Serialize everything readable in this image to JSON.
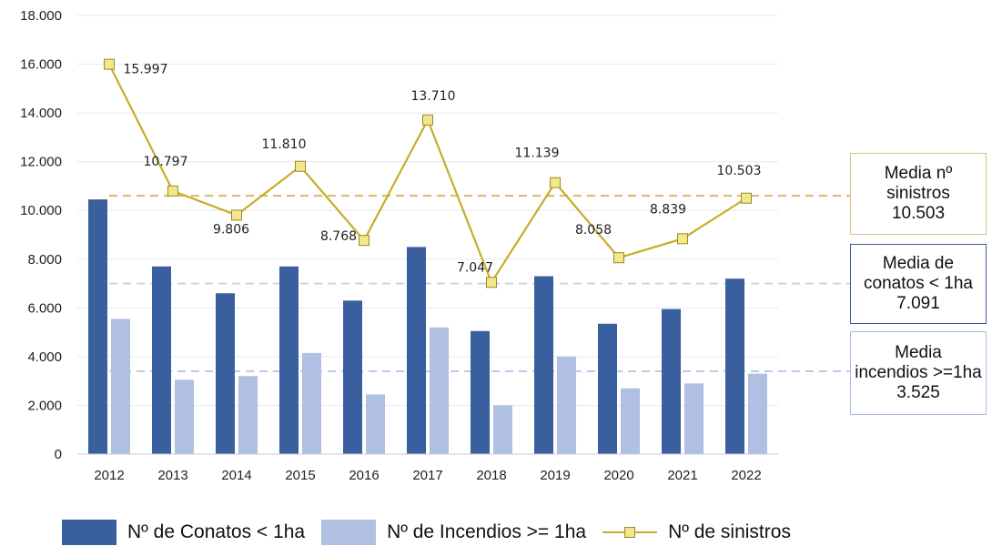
{
  "chart_data": {
    "type": "bar",
    "categories": [
      "2012",
      "2013",
      "2014",
      "2015",
      "2016",
      "2017",
      "2018",
      "2019",
      "2020",
      "2021",
      "2022"
    ],
    "ylim": [
      0,
      18000
    ],
    "yticks": [
      0,
      2000,
      4000,
      6000,
      8000,
      10000,
      12000,
      14000,
      16000,
      18000
    ],
    "ytick_labels": [
      "0",
      "2.000",
      "4.000",
      "6.000",
      "8.000",
      "10.000",
      "12.000",
      "14.000",
      "16.000",
      "18.000"
    ],
    "grid": true,
    "series": [
      {
        "name": "Nº de Conatos < 1ha",
        "type": "bar",
        "color": "#3a5f9e",
        "values": [
          10450,
          7700,
          6600,
          7700,
          6300,
          8500,
          5050,
          7300,
          5350,
          5950,
          7200
        ]
      },
      {
        "name": "Nº de Incendios >= 1ha",
        "type": "bar",
        "color": "#b0c0e2",
        "values": [
          5550,
          3050,
          3200,
          4150,
          2450,
          5200,
          2000,
          4000,
          2700,
          2900,
          3300
        ]
      },
      {
        "name": "Nº de sinistros",
        "type": "line",
        "color": "#c8ac2a",
        "marker_color": "#f0e88a",
        "values": [
          15997,
          10797,
          9806,
          11810,
          8768,
          13710,
          7047,
          11139,
          8058,
          8839,
          10503
        ],
        "labels": [
          "15.997",
          "10.797",
          "9.806",
          "11.810",
          "8.768",
          "13.710",
          "7.047",
          "11.139",
          "8.058",
          "8.839",
          "10.503"
        ]
      }
    ],
    "reference_lines": [
      {
        "value": 10600,
        "color": "#d8b860",
        "box_lines": [
          "Media nº",
          "sinistros",
          "10.503"
        ]
      },
      {
        "value": 7000,
        "color": "#c7d1e8",
        "box_lines": [
          "Media de",
          "conatos < 1ha",
          "7.091"
        ]
      },
      {
        "value": 3400,
        "color": "#b8c8e8",
        "box_lines": [
          "Media",
          "incendios >=1ha",
          "3.525"
        ]
      }
    ],
    "legend_position": "bottom"
  },
  "legend": {
    "conatos": "Nº de Conatos < 1ha",
    "incendios": "Nº de Incendios >= 1ha",
    "sinistros": "Nº de sinistros"
  }
}
